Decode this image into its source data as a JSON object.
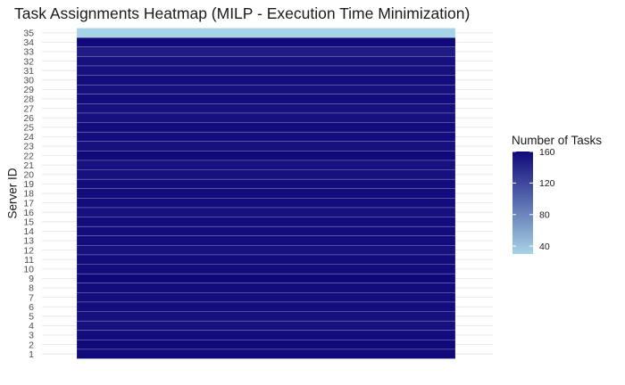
{
  "chart_data": {
    "type": "heatmap",
    "title": "Task Assignments Heatmap (MILP - Execution Time Minimization)",
    "xlabel": "",
    "ylabel": "Server ID",
    "y_categories": [
      "1",
      "2",
      "3",
      "4",
      "5",
      "6",
      "7",
      "8",
      "9",
      "10",
      "11",
      "12",
      "13",
      "14",
      "15",
      "16",
      "17",
      "18",
      "19",
      "20",
      "21",
      "22",
      "23",
      "24",
      "25",
      "26",
      "27",
      "28",
      "29",
      "30",
      "31",
      "32",
      "33",
      "34",
      "35"
    ],
    "values": [
      160,
      160,
      158,
      155,
      155,
      158,
      158,
      158,
      160,
      158,
      158,
      155,
      158,
      158,
      158,
      155,
      158,
      158,
      158,
      155,
      155,
      160,
      155,
      158,
      158,
      155,
      155,
      158,
      155,
      158,
      155,
      155,
      148,
      160,
      30
    ],
    "legend": {
      "title": "Number of Tasks",
      "ticks": [
        40,
        80,
        120,
        160
      ],
      "range": [
        30,
        160
      ],
      "low_color": "#a6d4e6",
      "high_color": "#10097a"
    },
    "grid": true,
    "legend_position": "right"
  }
}
